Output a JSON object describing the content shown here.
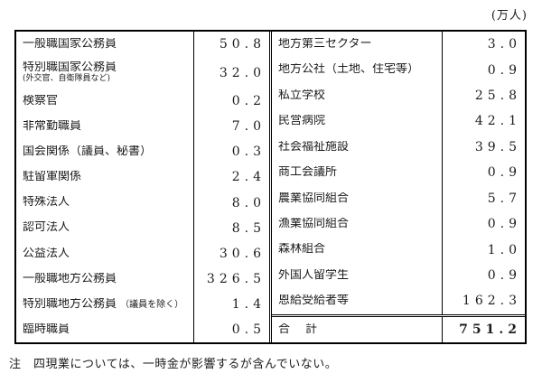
{
  "unit": "(万人)",
  "note": "注　四現業については、一時金が影響するが含んでいない。",
  "colors": {
    "background": "#ffffff",
    "border": "#000000",
    "text": "#1c1c1c"
  },
  "table": {
    "left": [
      {
        "label": "一般職国家公務員",
        "value": "50.8"
      },
      {
        "label": "特別職国家公務員",
        "sub": "(外交官、自衛隊員など)",
        "value": "32.0"
      },
      {
        "label": "検察官",
        "value": "0.2"
      },
      {
        "label": "非常勤職員",
        "value": "7.0"
      },
      {
        "label": "国会関係（議員、秘書）",
        "value": "0.3"
      },
      {
        "label": "駐留軍関係",
        "value": "2.4"
      },
      {
        "label": "特殊法人",
        "value": "8.0"
      },
      {
        "label": "認可法人",
        "value": "8.5"
      },
      {
        "label": "公益法人",
        "value": "30.6"
      },
      {
        "label": "一般職地方公務員",
        "value": "326.5"
      },
      {
        "label": "特別職地方公務員",
        "sub_inline": "（議員を除く）",
        "value": "1.4"
      },
      {
        "label": "臨時職員",
        "value": "0.5"
      }
    ],
    "right": [
      {
        "label": "地方第三セクター",
        "value": "3.0"
      },
      {
        "label": "地方公社（土地、住宅等）",
        "value": "0.9"
      },
      {
        "label": "私立学校",
        "value": "25.8"
      },
      {
        "label": "民営病院",
        "value": "42.1"
      },
      {
        "label": "社会福祉施設",
        "value": "39.5"
      },
      {
        "label": "商工会議所",
        "value": "0.9"
      },
      {
        "label": "農業協同組合",
        "value": "5.7"
      },
      {
        "label": "漁業協同組合",
        "value": "0.9"
      },
      {
        "label": "森林組合",
        "value": "1.0"
      },
      {
        "label": "外国人留学生",
        "value": "0.9"
      },
      {
        "label": "恩給受給者等",
        "value": "162.3"
      }
    ],
    "total": {
      "label": "合　計",
      "value": "751.2"
    }
  }
}
